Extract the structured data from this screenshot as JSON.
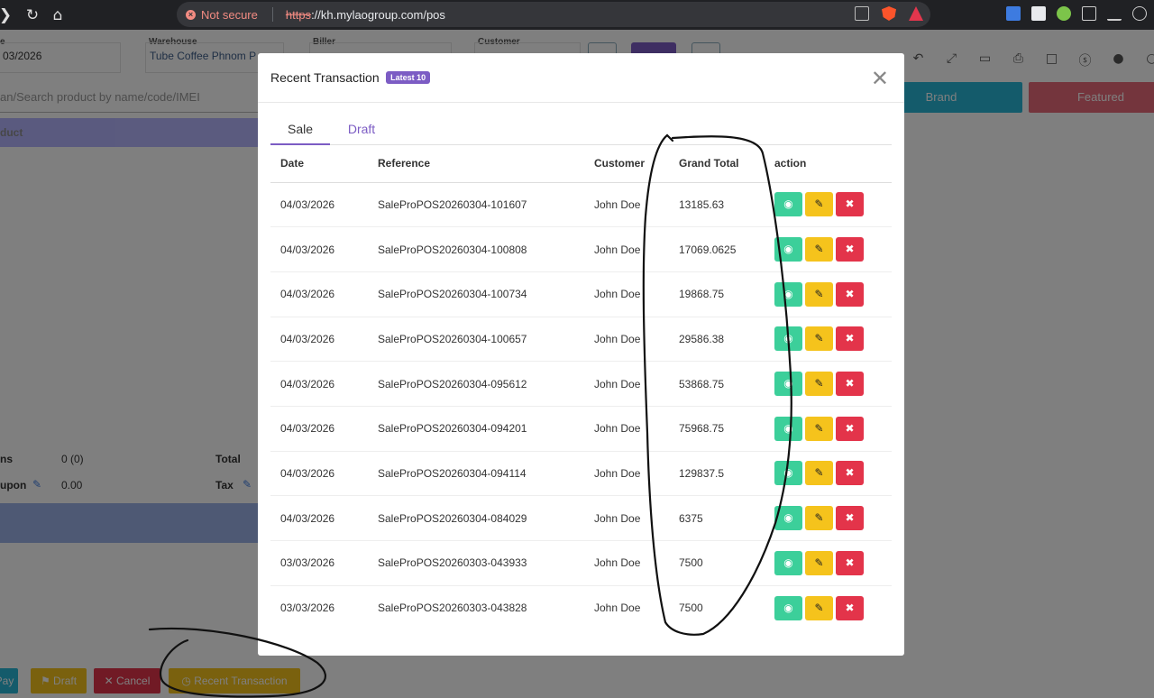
{
  "browser": {
    "security_label": "Not secure",
    "url_scheme": "https",
    "url_rest": "://kh.mylaogroup.com/pos"
  },
  "header": {
    "date_label": "e",
    "date_value": "03/2026",
    "warehouse_label": "Warehouse",
    "warehouse_value": "Tube Coffee Phnom P",
    "biller_label": "Biller",
    "customer_label": "Customer"
  },
  "left_panel": {
    "search_placeholder": "an/Search product by name/code/IMEI",
    "product_header": "duct",
    "items_label": "ns",
    "items_value": "0 (0)",
    "coupon_label": "upon",
    "coupon_value": "0.00",
    "total_label": "Total",
    "tax_label": "Tax"
  },
  "categories": {
    "brand": "Brand",
    "featured": "Featured"
  },
  "bottom_buttons": {
    "pay": "Pay",
    "draft": "Draft",
    "cancel": "Cancel",
    "recent": "Recent Transaction"
  },
  "modal": {
    "title": "Recent Transaction",
    "badge": "Latest 10",
    "tabs": [
      "Sale",
      "Draft"
    ],
    "columns": [
      "Date",
      "Reference",
      "Customer",
      "Grand Total",
      "action"
    ],
    "rows": [
      {
        "date": "04/03/2026",
        "reference": "SaleProPOS20260304-101607",
        "customer": "John Doe",
        "total": "13185.63"
      },
      {
        "date": "04/03/2026",
        "reference": "SaleProPOS20260304-100808",
        "customer": "John Doe",
        "total": "17069.0625"
      },
      {
        "date": "04/03/2026",
        "reference": "SaleProPOS20260304-100734",
        "customer": "John Doe",
        "total": "19868.75"
      },
      {
        "date": "04/03/2026",
        "reference": "SaleProPOS20260304-100657",
        "customer": "John Doe",
        "total": "29586.38"
      },
      {
        "date": "04/03/2026",
        "reference": "SaleProPOS20260304-095612",
        "customer": "John Doe",
        "total": "53868.75"
      },
      {
        "date": "04/03/2026",
        "reference": "SaleProPOS20260304-094201",
        "customer": "John Doe",
        "total": "75968.75"
      },
      {
        "date": "04/03/2026",
        "reference": "SaleProPOS20260304-094114",
        "customer": "John Doe",
        "total": "129837.5"
      },
      {
        "date": "04/03/2026",
        "reference": "SaleProPOS20260304-084029",
        "customer": "John Doe",
        "total": "6375"
      },
      {
        "date": "03/03/2026",
        "reference": "SaleProPOS20260303-043933",
        "customer": "John Doe",
        "total": "7500"
      },
      {
        "date": "03/03/2026",
        "reference": "SaleProPOS20260303-043828",
        "customer": "John Doe",
        "total": "7500"
      }
    ]
  },
  "colors": {
    "accent": "#7c5cc4",
    "view": "#3ccf9a",
    "edit": "#f5c31c",
    "delete": "#e3344a"
  }
}
